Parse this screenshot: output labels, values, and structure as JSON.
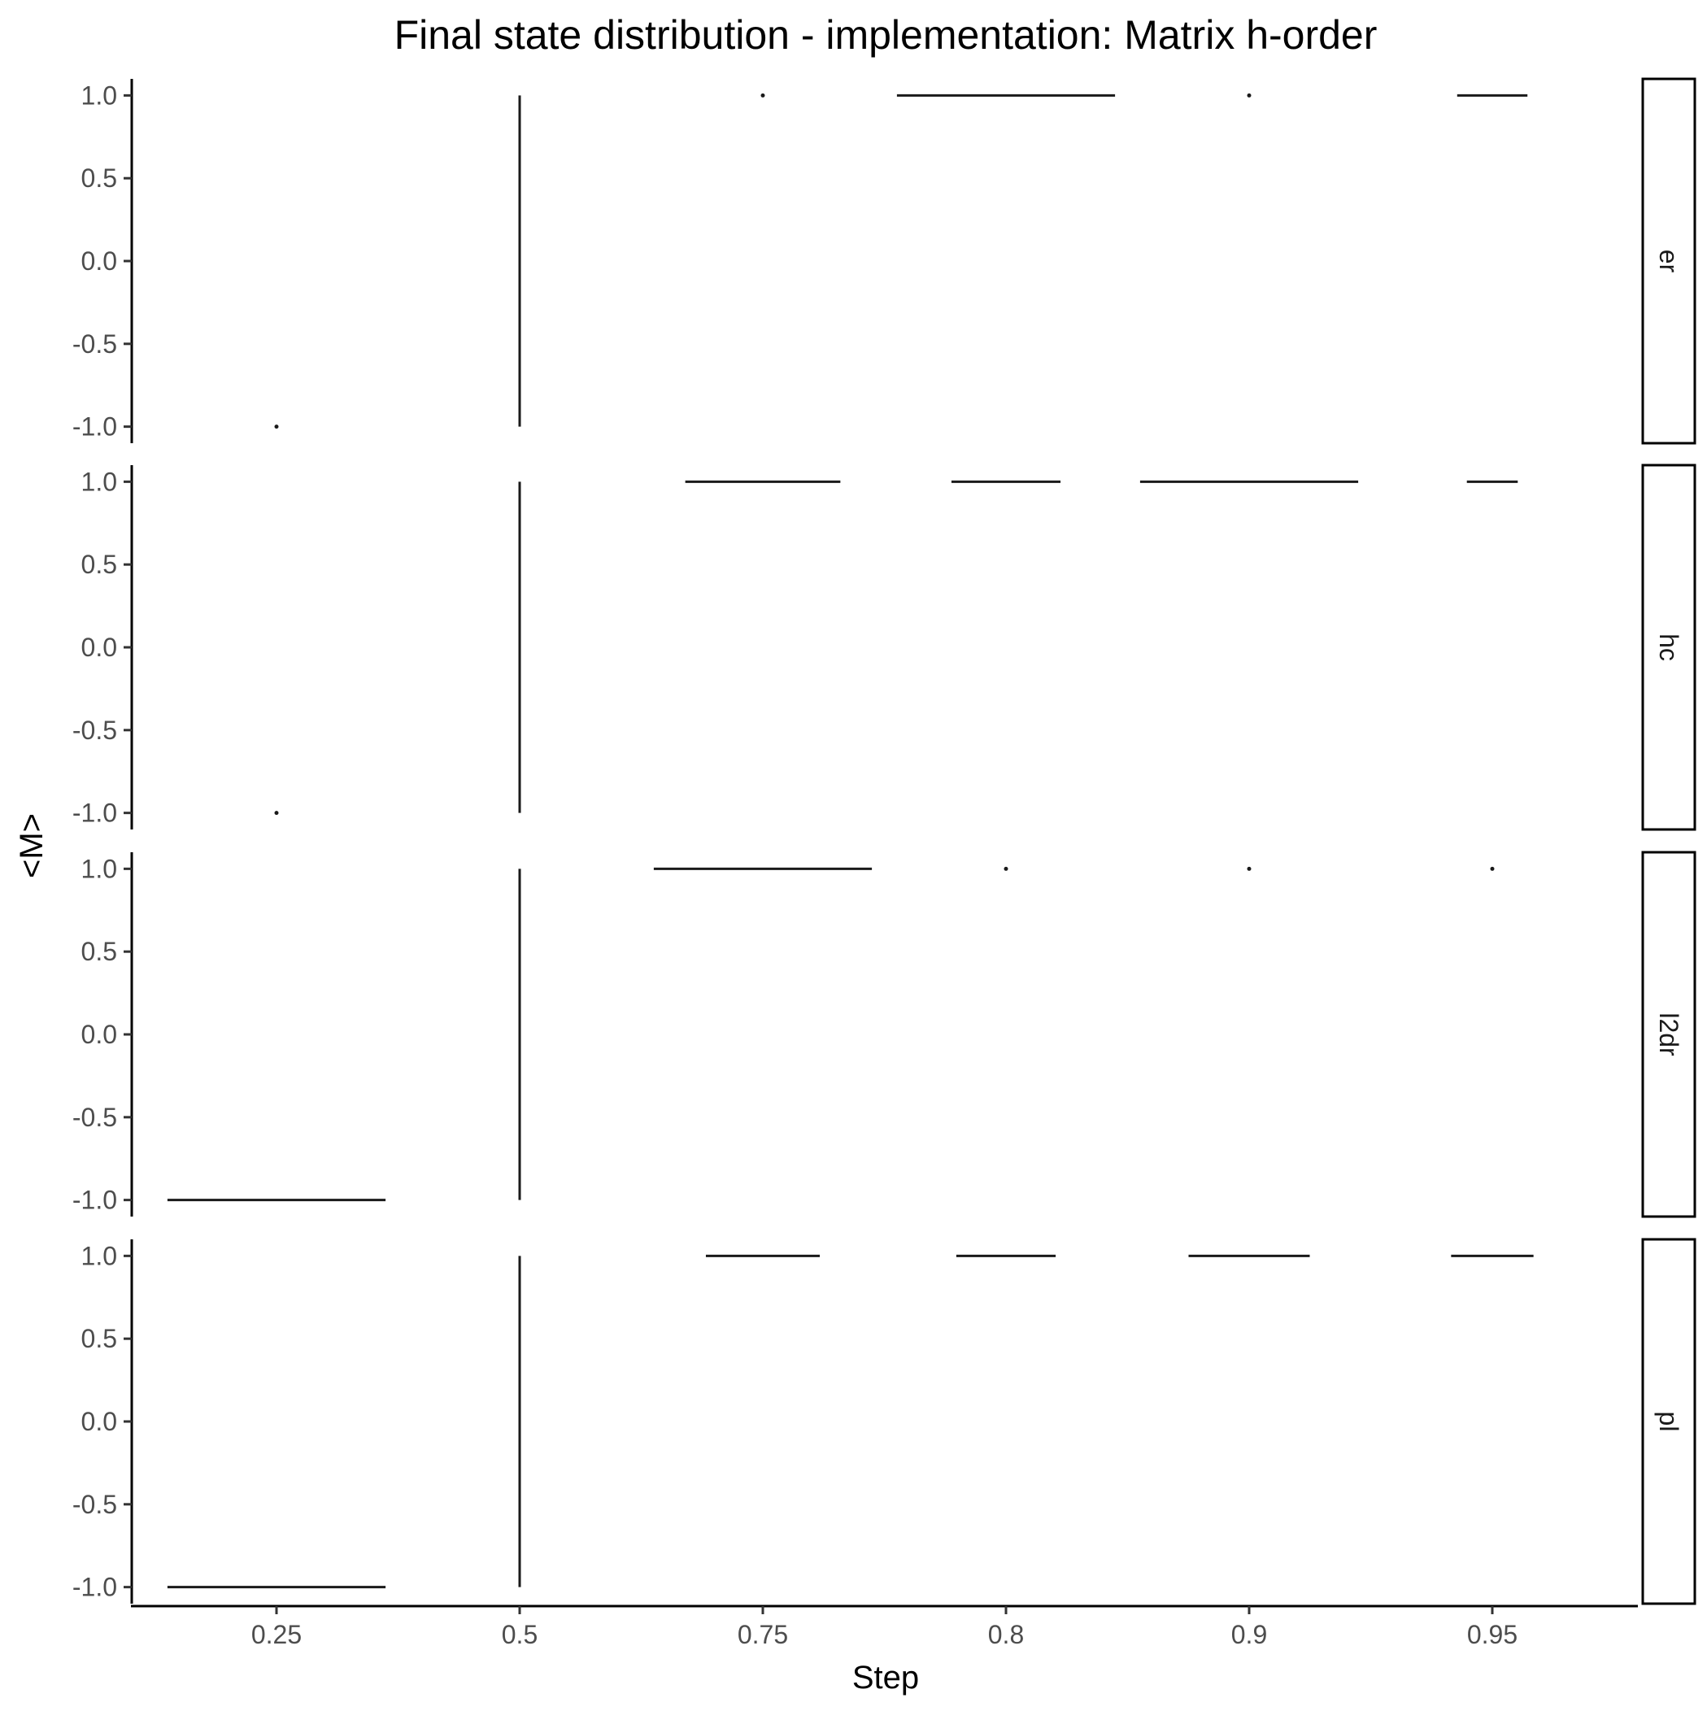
{
  "chart_data": {
    "type": "violin",
    "title": "Final state distribution - implementation: Matrix h-order",
    "xlabel": "Step",
    "ylabel": "<M>",
    "categories": [
      "0.25",
      "0.5",
      "0.75",
      "0.8",
      "0.9",
      "0.95"
    ],
    "y_ticks": [
      "1.0",
      "0.5",
      "0.0",
      "-0.5",
      "-1.0"
    ],
    "y_tick_values": [
      1.0,
      0.5,
      0.0,
      -0.5,
      -1.0
    ],
    "ylim": [
      -1.1,
      1.1
    ],
    "grid": false,
    "facet_position": "right",
    "panels": [
      {
        "label": "er",
        "marks": [
          {
            "category": "0.25",
            "y": -1.0,
            "shape": "point"
          },
          {
            "category": "0.5",
            "y_min": -1.0,
            "y_max": 1.0,
            "shape": "vertical-line"
          },
          {
            "category": "0.75",
            "y": 1.0,
            "shape": "point"
          },
          {
            "category": "0.8",
            "y": 1.0,
            "width": 0.9,
            "shape": "horizontal-line"
          },
          {
            "category": "0.9",
            "y": 1.0,
            "shape": "point"
          },
          {
            "category": "0.95",
            "y": 1.0,
            "width": 0.29,
            "shape": "horizontal-line"
          }
        ]
      },
      {
        "label": "hc",
        "marks": [
          {
            "category": "0.25",
            "y": -1.0,
            "shape": "point"
          },
          {
            "category": "0.5",
            "y_min": -1.0,
            "y_max": 1.0,
            "shape": "vertical-line"
          },
          {
            "category": "0.75",
            "y": 1.0,
            "width": 0.64,
            "shape": "horizontal-line"
          },
          {
            "category": "0.8",
            "y": 1.0,
            "width": 0.45,
            "shape": "horizontal-line"
          },
          {
            "category": "0.9",
            "y": 1.0,
            "width": 0.9,
            "shape": "horizontal-line"
          },
          {
            "category": "0.95",
            "y": 1.0,
            "width": 0.21,
            "shape": "horizontal-line"
          }
        ]
      },
      {
        "label": "l2dr",
        "marks": [
          {
            "category": "0.25",
            "y": -1.0,
            "width": 0.9,
            "shape": "horizontal-line"
          },
          {
            "category": "0.5",
            "y_min": -1.0,
            "y_max": 1.0,
            "shape": "vertical-line"
          },
          {
            "category": "0.75",
            "y": 1.0,
            "width": 0.9,
            "shape": "horizontal-line"
          },
          {
            "category": "0.8",
            "y": 1.0,
            "shape": "point"
          },
          {
            "category": "0.9",
            "y": 1.0,
            "shape": "point"
          },
          {
            "category": "0.95",
            "y": 1.0,
            "shape": "point"
          }
        ]
      },
      {
        "label": "pl",
        "marks": [
          {
            "category": "0.25",
            "y": -1.0,
            "width": 0.9,
            "shape": "horizontal-line"
          },
          {
            "category": "0.5",
            "y_min": -1.0,
            "y_max": 1.0,
            "shape": "vertical-line"
          },
          {
            "category": "0.75",
            "y": 1.0,
            "width": 0.47,
            "shape": "horizontal-line"
          },
          {
            "category": "0.8",
            "y": 1.0,
            "width": 0.41,
            "shape": "horizontal-line"
          },
          {
            "category": "0.9",
            "y": 1.0,
            "width": 0.5,
            "shape": "horizontal-line"
          },
          {
            "category": "0.95",
            "y": 1.0,
            "width": 0.34,
            "shape": "horizontal-line"
          }
        ]
      }
    ]
  }
}
